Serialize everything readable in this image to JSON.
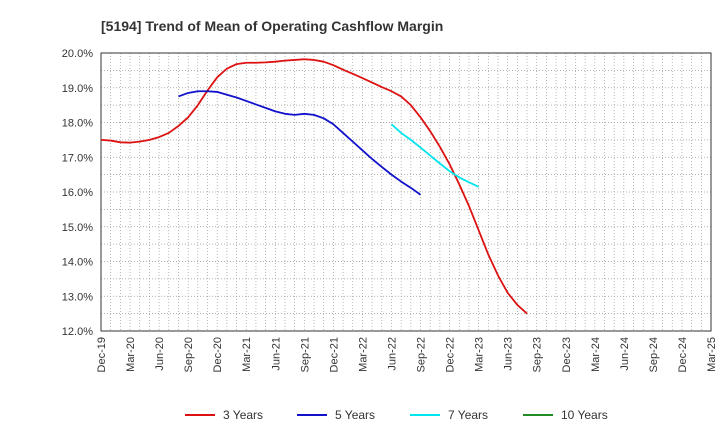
{
  "chart_data": {
    "type": "line",
    "title": "[5194]  Trend of Mean of Operating Cashflow Margin",
    "xlabel": "",
    "ylabel": "",
    "ylim": [
      12.0,
      20.0
    ],
    "y_ticks": [
      "20.0%",
      "19.0%",
      "18.0%",
      "17.0%",
      "16.0%",
      "15.0%",
      "14.0%",
      "13.0%",
      "12.0%"
    ],
    "x_ticks": [
      "Dec-19",
      "Mar-20",
      "Jun-20",
      "Sep-20",
      "Dec-20",
      "Mar-21",
      "Jun-21",
      "Sep-21",
      "Dec-21",
      "Mar-22",
      "Jun-22",
      "Sep-22",
      "Dec-22",
      "Mar-23",
      "Jun-23",
      "Sep-23",
      "Dec-23",
      "Mar-24",
      "Jun-24",
      "Sep-24",
      "Dec-24",
      "Mar-25"
    ],
    "grid": true,
    "legend_position": "bottom",
    "series": [
      {
        "name": "3 Years",
        "color": "#dd1111",
        "start_index": 0,
        "values": [
          17.5,
          17.48,
          17.43,
          17.42,
          17.45,
          17.5,
          17.58,
          17.7,
          17.9,
          18.15,
          18.5,
          18.92,
          19.3,
          19.55,
          19.68,
          19.72,
          19.72,
          19.73,
          19.75,
          19.78,
          19.8,
          19.82,
          19.8,
          19.75,
          19.65,
          19.52,
          19.4,
          19.28,
          19.15,
          19.02,
          18.9,
          18.75,
          18.5,
          18.15,
          17.75,
          17.3,
          16.8,
          16.22,
          15.6,
          14.9,
          14.2,
          13.6,
          13.1,
          12.75,
          12.5
        ]
      },
      {
        "name": "5 Years",
        "color": "#1111cc",
        "start_index": 8,
        "values": [
          18.75,
          18.85,
          18.9,
          18.9,
          18.88,
          18.8,
          18.72,
          18.62,
          18.52,
          18.42,
          18.32,
          18.25,
          18.22,
          18.25,
          18.22,
          18.12,
          17.95,
          17.7,
          17.45,
          17.2,
          16.95,
          16.72,
          16.5,
          16.3,
          16.12,
          15.92
        ]
      },
      {
        "name": "7 Years",
        "color": "#00e5ee",
        "start_index": 30,
        "values": [
          17.95,
          17.7,
          17.5,
          17.28,
          17.05,
          16.82,
          16.6,
          16.42,
          16.28,
          16.15
        ]
      },
      {
        "name": "10 Years",
        "color": "#228b22",
        "start_index": 0,
        "values": []
      }
    ]
  }
}
